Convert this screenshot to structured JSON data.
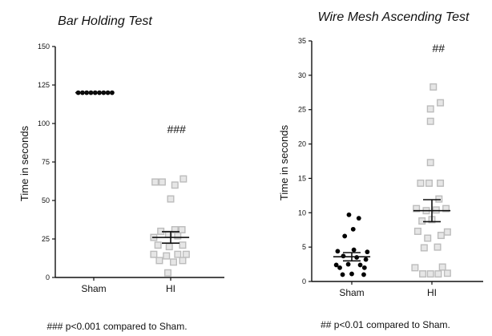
{
  "footnotes": {
    "left": "### p<0.001 compared to Sham.",
    "right": "## p<0.01 compared to Sham."
  },
  "chart_data": [
    {
      "type": "scatter",
      "title": "Bar Holding  Test",
      "xlabel": "",
      "ylabel": "Time in seconds",
      "ylim": [
        0,
        150
      ],
      "yticks": [
        0,
        25,
        50,
        75,
        100,
        125,
        150
      ],
      "categories": [
        "Sham",
        "HI"
      ],
      "significance": "###",
      "series": [
        {
          "category": "Sham",
          "marker": "circle",
          "color": "#000000",
          "points": [
            {
              "x": -0.22,
              "y": 120
            },
            {
              "x": -0.16,
              "y": 120
            },
            {
              "x": -0.1,
              "y": 120
            },
            {
              "x": -0.04,
              "y": 120
            },
            {
              "x": 0.02,
              "y": 120
            },
            {
              "x": 0.08,
              "y": 120
            },
            {
              "x": 0.14,
              "y": 120
            },
            {
              "x": 0.2,
              "y": 120
            },
            {
              "x": 0.26,
              "y": 120
            }
          ],
          "mean": 120,
          "sem": 0
        },
        {
          "category": "HI",
          "marker": "square",
          "color": "#bcbcbc",
          "points": [
            {
              "x": -0.22,
              "y": 62
            },
            {
              "x": -0.12,
              "y": 62
            },
            {
              "x": 0.06,
              "y": 60
            },
            {
              "x": 0.18,
              "y": 64
            },
            {
              "x": 0.0,
              "y": 51
            },
            {
              "x": -0.14,
              "y": 30
            },
            {
              "x": 0.06,
              "y": 31
            },
            {
              "x": 0.16,
              "y": 31
            },
            {
              "x": -0.24,
              "y": 26
            },
            {
              "x": -0.03,
              "y": 28
            },
            {
              "x": 0.1,
              "y": 27
            },
            {
              "x": -0.18,
              "y": 21
            },
            {
              "x": -0.02,
              "y": 20
            },
            {
              "x": 0.17,
              "y": 21
            },
            {
              "x": -0.24,
              "y": 15
            },
            {
              "x": -0.06,
              "y": 14
            },
            {
              "x": 0.1,
              "y": 15
            },
            {
              "x": 0.22,
              "y": 15
            },
            {
              "x": -0.16,
              "y": 11
            },
            {
              "x": 0.04,
              "y": 10
            },
            {
              "x": 0.17,
              "y": 11
            },
            {
              "x": -0.04,
              "y": 3
            }
          ],
          "mean": 26,
          "sem": 3.7
        }
      ]
    },
    {
      "type": "scatter",
      "title": "Wire Mesh  Ascending Test",
      "xlabel": "",
      "ylabel": "Time in seconds",
      "ylim": [
        0,
        35
      ],
      "yticks": [
        0,
        5,
        10,
        15,
        20,
        25,
        30,
        35
      ],
      "categories": [
        "Sham",
        "HI"
      ],
      "significance": "##",
      "series": [
        {
          "category": "Sham",
          "marker": "circle",
          "color": "#000000",
          "points": [
            {
              "x": -0.04,
              "y": 9.7
            },
            {
              "x": 0.1,
              "y": 9.2
            },
            {
              "x": 0.02,
              "y": 7.6
            },
            {
              "x": -0.1,
              "y": 6.6
            },
            {
              "x": -0.2,
              "y": 4.4
            },
            {
              "x": 0.03,
              "y": 4.6
            },
            {
              "x": 0.22,
              "y": 4.3
            },
            {
              "x": -0.12,
              "y": 3.7
            },
            {
              "x": 0.07,
              "y": 3.5
            },
            {
              "x": 0.2,
              "y": 3.2
            },
            {
              "x": -0.22,
              "y": 2.4
            },
            {
              "x": -0.05,
              "y": 2.5
            },
            {
              "x": 0.12,
              "y": 2.4
            },
            {
              "x": -0.17,
              "y": 2.0
            },
            {
              "x": 0.18,
              "y": 2.0
            },
            {
              "x": -0.13,
              "y": 1.0
            },
            {
              "x": 0.0,
              "y": 1.1
            },
            {
              "x": 0.17,
              "y": 1.0
            }
          ],
          "mean": 3.6,
          "sem": 0.6
        },
        {
          "category": "HI",
          "marker": "square",
          "color": "#bcbcbc",
          "points": [
            {
              "x": 0.02,
              "y": 28.3
            },
            {
              "x": -0.02,
              "y": 25.1
            },
            {
              "x": 0.12,
              "y": 26.0
            },
            {
              "x": -0.02,
              "y": 23.3
            },
            {
              "x": -0.02,
              "y": 17.3
            },
            {
              "x": -0.16,
              "y": 14.3
            },
            {
              "x": -0.04,
              "y": 14.3
            },
            {
              "x": 0.12,
              "y": 14.3
            },
            {
              "x": 0.1,
              "y": 12.0
            },
            {
              "x": -0.22,
              "y": 10.6
            },
            {
              "x": -0.08,
              "y": 10.3
            },
            {
              "x": 0.06,
              "y": 10.4
            },
            {
              "x": 0.2,
              "y": 10.6
            },
            {
              "x": -0.14,
              "y": 8.8
            },
            {
              "x": 0.0,
              "y": 9.0
            },
            {
              "x": -0.2,
              "y": 7.3
            },
            {
              "x": 0.22,
              "y": 7.2
            },
            {
              "x": -0.06,
              "y": 6.3
            },
            {
              "x": 0.13,
              "y": 6.7
            },
            {
              "x": -0.11,
              "y": 4.9
            },
            {
              "x": 0.08,
              "y": 5.0
            },
            {
              "x": -0.24,
              "y": 2.0
            },
            {
              "x": 0.15,
              "y": 2.1
            },
            {
              "x": -0.13,
              "y": 1.1
            },
            {
              "x": -0.02,
              "y": 1.1
            },
            {
              "x": 0.09,
              "y": 1.1
            },
            {
              "x": 0.22,
              "y": 1.2
            }
          ],
          "mean": 10.3,
          "sem": 1.6
        }
      ]
    }
  ]
}
